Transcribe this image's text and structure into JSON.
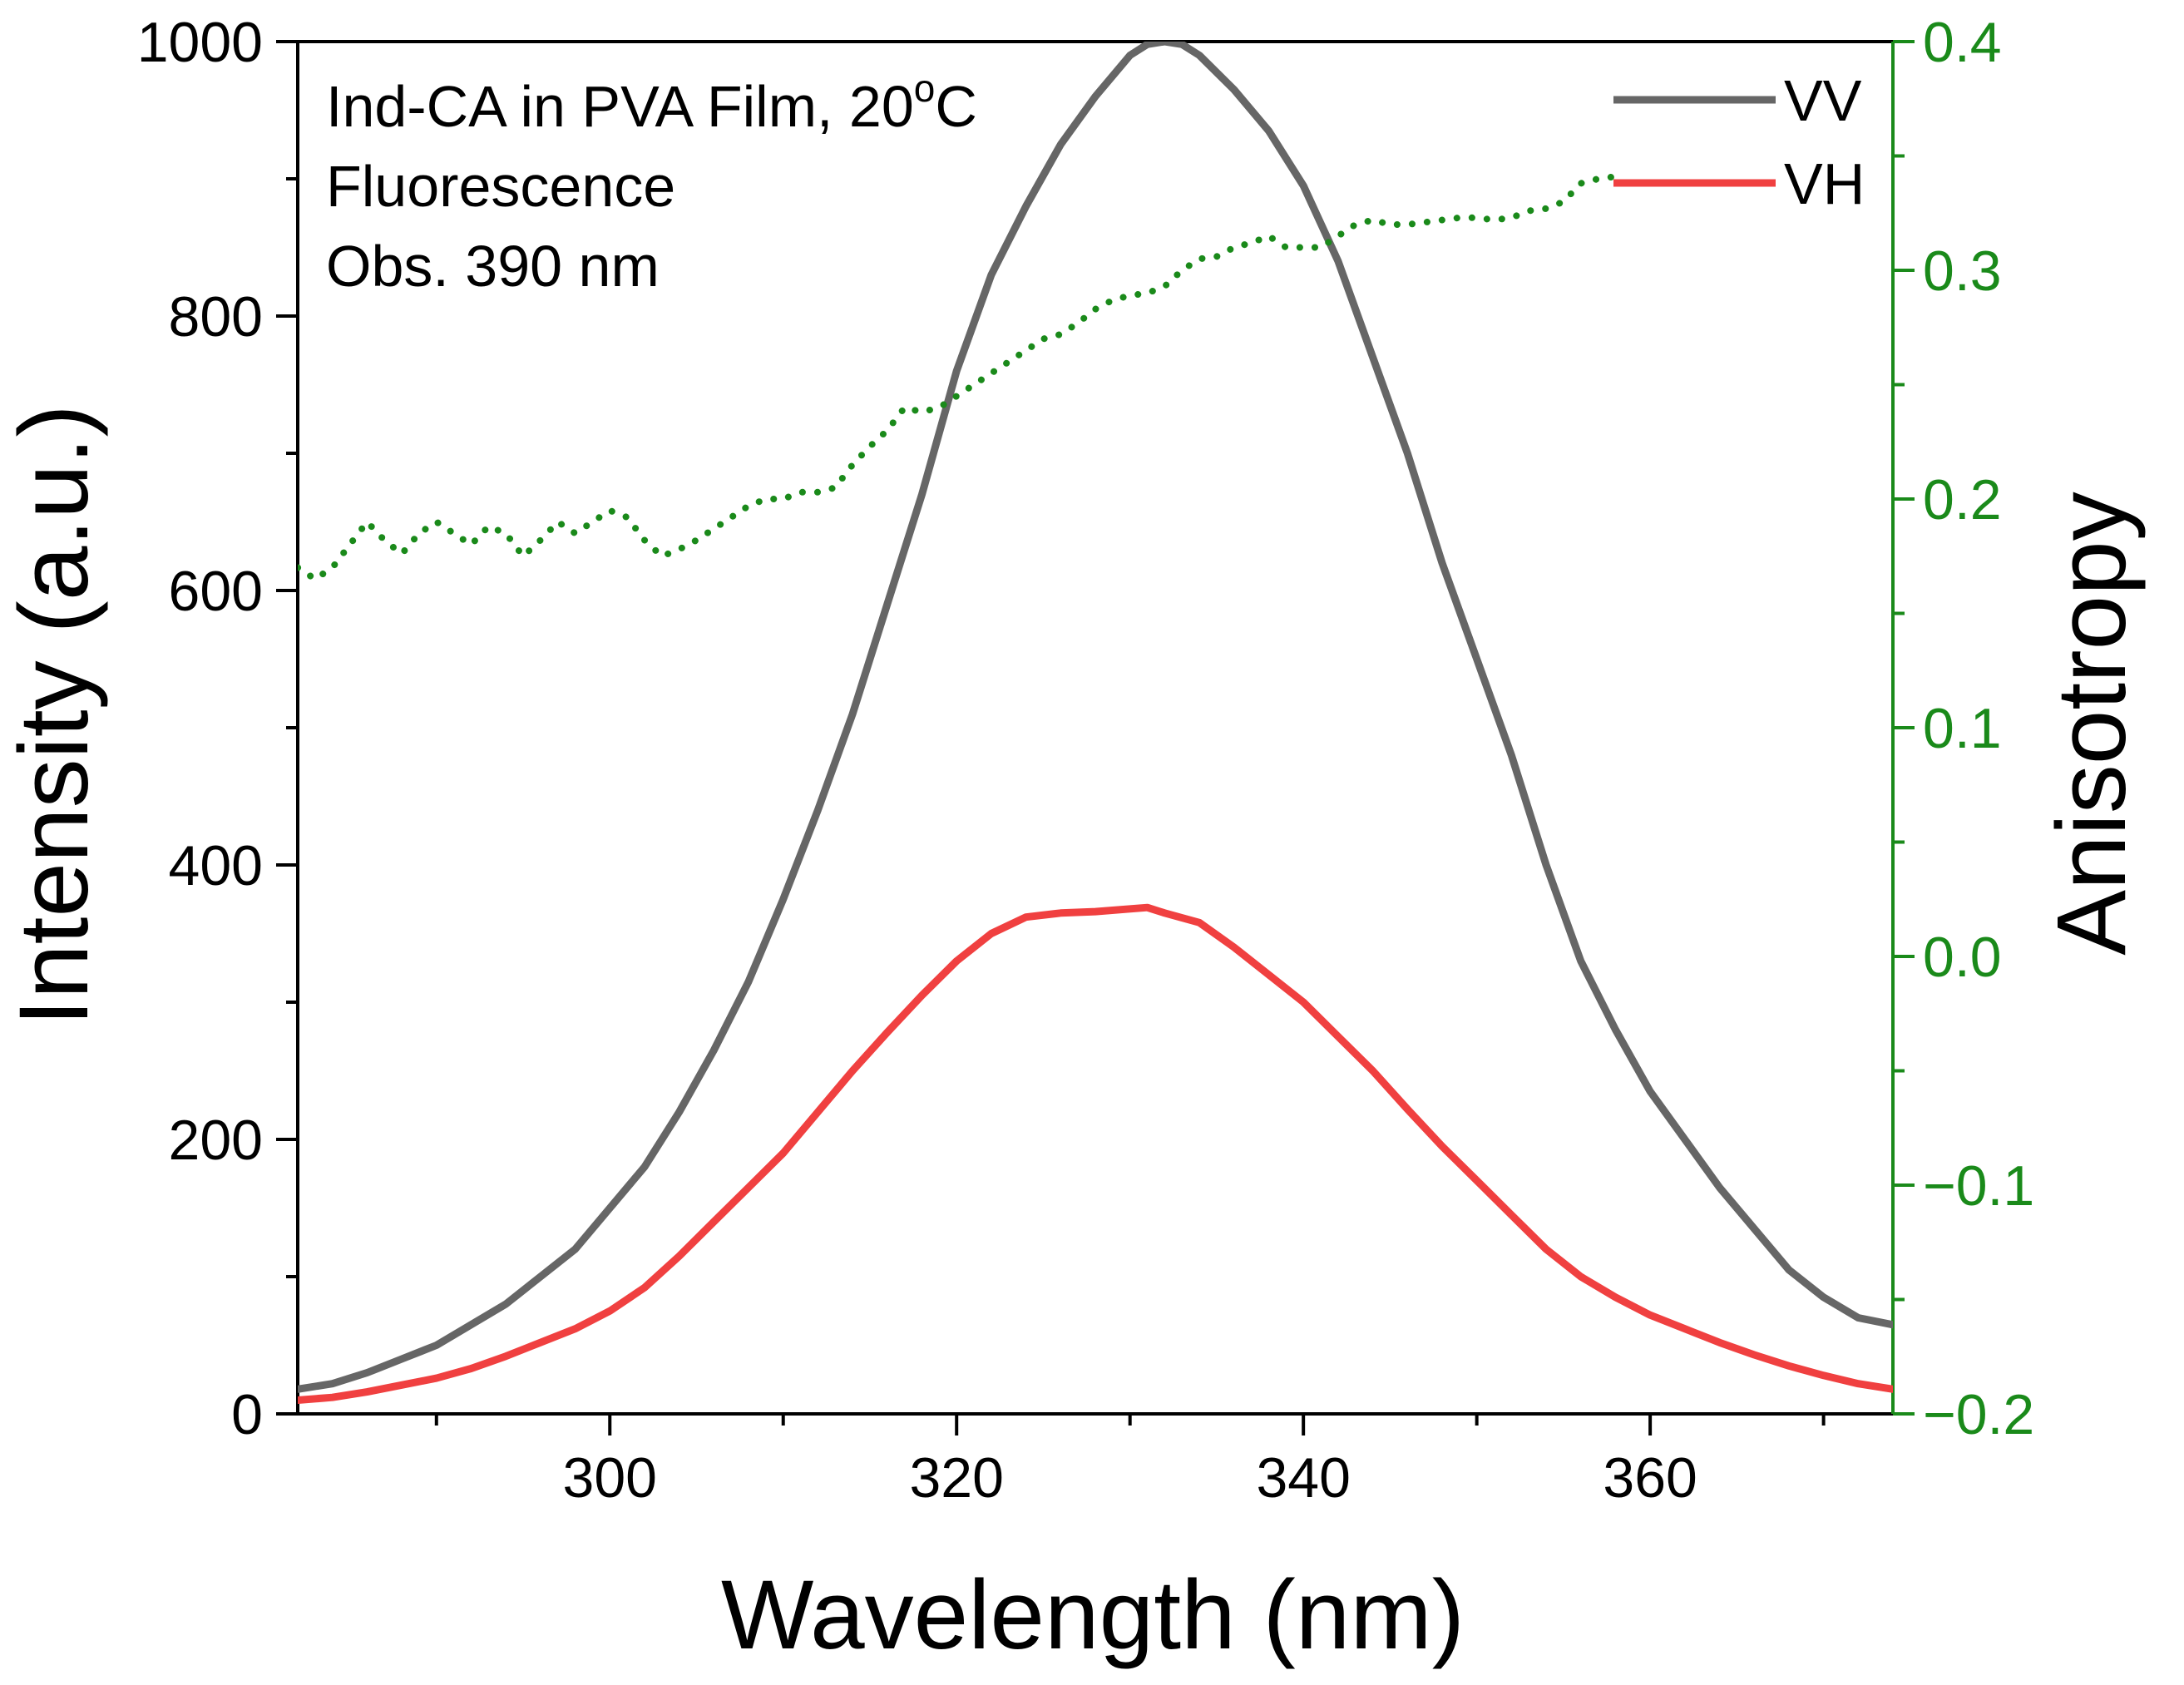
{
  "chart_data": {
    "type": "line",
    "xlabel": "Wavelength (nm)",
    "ylabel_left": "Intensity (a.u.)",
    "ylabel_right": "Anisotropy",
    "xlim": [
      282,
      374
    ],
    "ylim_left": [
      0,
      1000
    ],
    "ylim_right": [
      -0.2,
      0.4
    ],
    "x_ticks": [
      300,
      320,
      340,
      360
    ],
    "x_minor_ticks": [
      290,
      310,
      330,
      350,
      370
    ],
    "y_left_ticks": [
      0,
      200,
      400,
      600,
      800,
      1000
    ],
    "y_left_minor_ticks": [
      100,
      300,
      500,
      700,
      900
    ],
    "y_right_ticks": [
      {
        "value": -0.2,
        "label": "−0.2"
      },
      {
        "value": -0.1,
        "label": "−0.1"
      },
      {
        "value": 0.0,
        "label": "0.0"
      },
      {
        "value": 0.1,
        "label": "0.1"
      },
      {
        "value": 0.2,
        "label": "0.2"
      },
      {
        "value": 0.3,
        "label": "0.3"
      },
      {
        "value": 0.4,
        "label": "0.4"
      }
    ],
    "y_right_minor_ticks": [
      -0.15,
      -0.05,
      0.05,
      0.15,
      0.25,
      0.35
    ],
    "annotations": {
      "line1": "Ind-CA in PVA Film, 20",
      "line1_sup": "o",
      "line1_end": "C",
      "line2": "Fluorescence",
      "line3": "Obs. 390 nm"
    },
    "legend_position": "top-right",
    "colors": {
      "vv": "#666666",
      "vh": "#f04040",
      "anisotropy": "#1a8a1a",
      "right_axis": "#1a8a1a",
      "text": "#000000"
    },
    "series": [
      {
        "name": "VV",
        "axis": "left",
        "x": [
          282,
          284,
          286,
          288,
          290,
          292,
          294,
          296,
          298,
          300,
          302,
          304,
          306,
          308,
          310,
          312,
          314,
          316,
          318,
          320,
          322,
          324,
          326,
          328,
          330,
          331,
          332,
          333,
          334,
          336,
          338,
          340,
          342,
          344,
          346,
          348,
          350,
          352,
          354,
          356,
          358,
          360,
          362,
          364,
          366,
          368,
          370,
          372,
          374
        ],
        "values": [
          18,
          22,
          30,
          40,
          50,
          65,
          80,
          100,
          120,
          150,
          180,
          220,
          265,
          315,
          375,
          440,
          510,
          590,
          670,
          760,
          830,
          880,
          925,
          960,
          990,
          998,
          1000,
          998,
          990,
          965,
          935,
          895,
          840,
          770,
          700,
          620,
          550,
          480,
          400,
          330,
          280,
          235,
          200,
          165,
          135,
          105,
          85,
          70,
          65
        ]
      },
      {
        "name": "VH",
        "axis": "left",
        "x": [
          282,
          284,
          286,
          288,
          290,
          292,
          294,
          296,
          298,
          300,
          302,
          304,
          306,
          308,
          310,
          312,
          314,
          316,
          318,
          320,
          322,
          324,
          326,
          328,
          330,
          331,
          332,
          334,
          336,
          338,
          340,
          342,
          344,
          346,
          348,
          350,
          352,
          354,
          356,
          358,
          360,
          362,
          364,
          366,
          368,
          370,
          372,
          374
        ],
        "values": [
          10,
          12,
          16,
          21,
          26,
          33,
          42,
          52,
          62,
          75,
          92,
          115,
          140,
          165,
          190,
          220,
          250,
          278,
          305,
          330,
          350,
          362,
          365,
          366,
          368,
          369,
          365,
          358,
          340,
          320,
          300,
          275,
          250,
          222,
          195,
          170,
          145,
          120,
          100,
          85,
          72,
          62,
          52,
          43,
          35,
          28,
          22,
          18
        ]
      },
      {
        "name": "Anisotropy",
        "axis": "right",
        "x": [
          282,
          283,
          284,
          285,
          286,
          287,
          288,
          289,
          290,
          291,
          292,
          293,
          294,
          295,
          296,
          297,
          298,
          299,
          300,
          301,
          302,
          303,
          304,
          305,
          306,
          307,
          308,
          309,
          310,
          311,
          312,
          313,
          314,
          315,
          316,
          317,
          318,
          319,
          320,
          321,
          322,
          323,
          324,
          325,
          326,
          327,
          328,
          329,
          330,
          331,
          332,
          333,
          334,
          335,
          336,
          337,
          338,
          339,
          340,
          341,
          342,
          343,
          344,
          345,
          346,
          347,
          348,
          349,
          350,
          351,
          352,
          353,
          354,
          355,
          356,
          357,
          358
        ],
        "values": [
          0.17,
          0.165,
          0.17,
          0.18,
          0.19,
          0.182,
          0.176,
          0.185,
          0.19,
          0.185,
          0.18,
          0.188,
          0.185,
          0.175,
          0.182,
          0.19,
          0.185,
          0.19,
          0.195,
          0.192,
          0.182,
          0.175,
          0.178,
          0.182,
          0.187,
          0.192,
          0.197,
          0.2,
          0.2,
          0.203,
          0.203,
          0.205,
          0.215,
          0.223,
          0.23,
          0.24,
          0.238,
          0.24,
          0.245,
          0.25,
          0.255,
          0.26,
          0.265,
          0.27,
          0.272,
          0.277,
          0.283,
          0.287,
          0.289,
          0.29,
          0.293,
          0.3,
          0.305,
          0.306,
          0.31,
          0.312,
          0.315,
          0.31,
          0.31,
          0.31,
          0.315,
          0.32,
          0.322,
          0.32,
          0.32,
          0.321,
          0.322,
          0.323,
          0.323,
          0.322,
          0.323,
          0.326,
          0.327,
          0.33,
          0.338,
          0.34,
          0.341
        ]
      }
    ]
  }
}
